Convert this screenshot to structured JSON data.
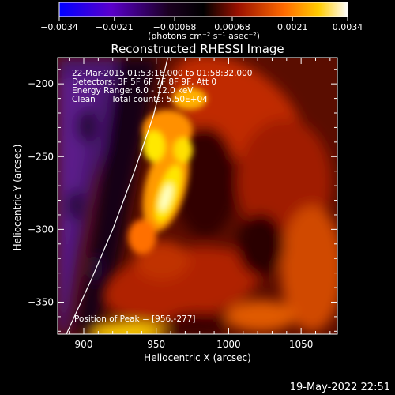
{
  "chart_data": {
    "type": "heatmap",
    "title": "Reconstructed RHESSI Image",
    "xlabel": "Heliocentric X (arcsec)",
    "ylabel": "Heliocentric Y (arcsec)",
    "xlim": [
      882,
      1075
    ],
    "ylim": [
      -372,
      -182
    ],
    "xticks": [
      900,
      950,
      1000,
      1050
    ],
    "xtick_labels": [
      "900",
      "950",
      "1000",
      "1050"
    ],
    "yticks": [
      -200,
      -250,
      -300,
      -350
    ],
    "ytick_labels": [
      "−200",
      "−250",
      "−300",
      "−350"
    ],
    "colorbar": {
      "min": -0.0034,
      "max": 0.0034,
      "ticks": [
        -0.0034,
        -0.0021,
        -0.00068,
        0.00068,
        0.0021,
        0.0034
      ],
      "tick_labels": [
        "−0.0034",
        "−0.0021",
        "−0.00068",
        "0.00068",
        "0.0021",
        "0.0034"
      ],
      "units_label": "(photons cm⁻² s⁻¹ asec⁻²)",
      "colormap": "blue-purple-black-red-orange-yellow-white"
    },
    "annotations": [
      "22-Mar-2015 01:53:16.000 to 01:58:32.000",
      "Detectors: 3F 5F 6F 7F 8F 9F, Att 0",
      "Energy Range: 6.0 - 12.0 keV",
      "Clean      Total counts: 5.50E+04"
    ],
    "peak_label": "Position of Peak = [956,-277]",
    "peak": [
      956,
      -277
    ],
    "limb_curve": [
      [
        888,
        -372
      ],
      [
        905,
        -335
      ],
      [
        920,
        -300
      ],
      [
        935,
        -260
      ],
      [
        948,
        -222
      ],
      [
        958,
        -182
      ]
    ]
  },
  "footer": {
    "timestamp": "19-May-2022 22:51"
  },
  "colors": {
    "background": "#000000",
    "foreground": "#ffffff"
  }
}
